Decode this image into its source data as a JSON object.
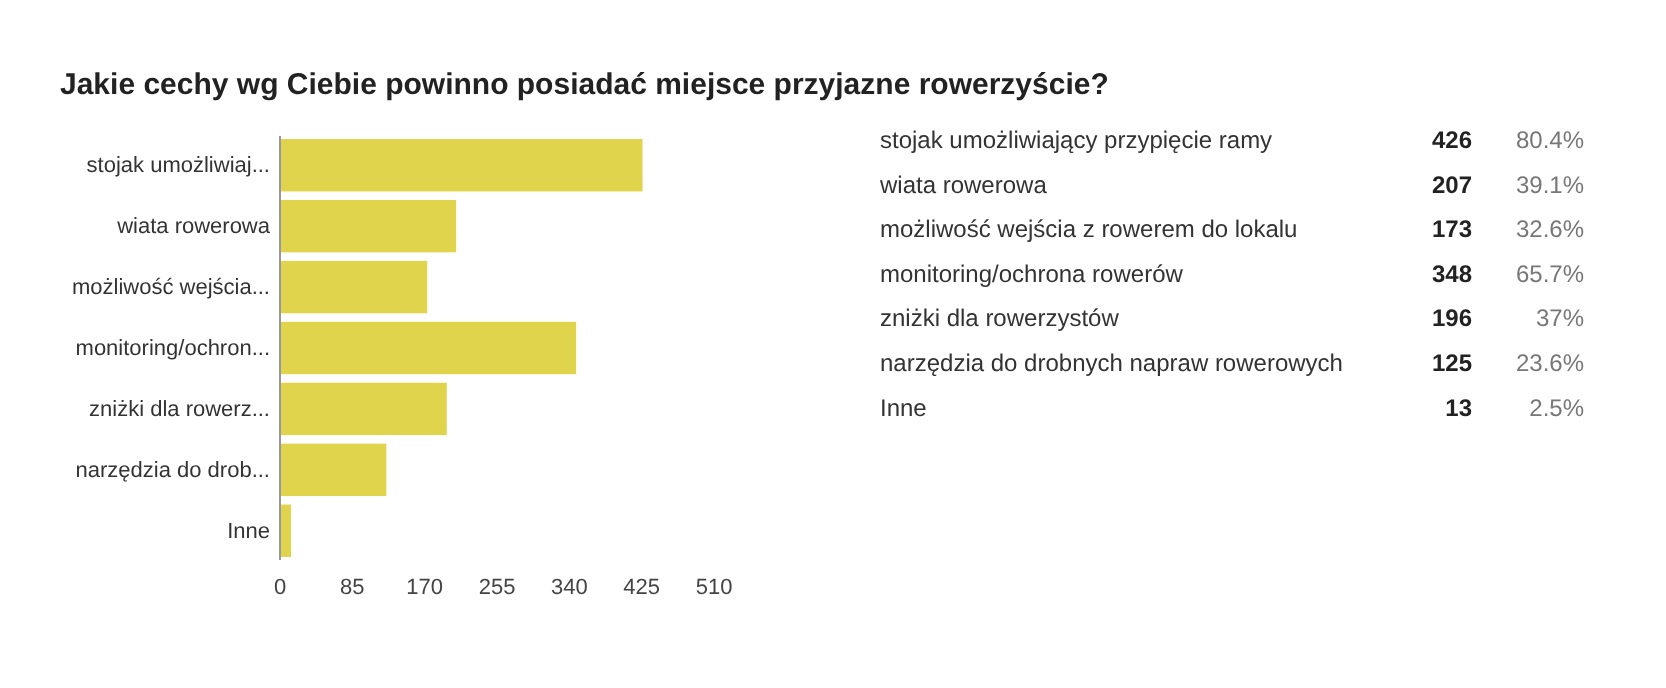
{
  "chart_data": [
    {
      "type": "bar",
      "orientation": "horizontal",
      "title": "Jakie cechy wg Ciebie powinno posiadać miejsce przyjazne rowerzyście?",
      "categories": [
        "stojak umożliwiaj...",
        "wiata rowerowa",
        "możliwość wejścia...",
        "monitoring/ochron...",
        "zniżki dla rowerz...",
        "narzędzia do drob...",
        "Inne"
      ],
      "values": [
        426,
        207,
        173,
        348,
        196,
        125,
        13
      ],
      "color": "#e0d44c",
      "xlim": [
        0,
        510
      ],
      "xticks": [
        0,
        85,
        170,
        255,
        340,
        425,
        510
      ],
      "grid": false
    },
    {
      "type": "other",
      "categories": [
        "stojak umożliwiający przypięcie ramy",
        "wiata rowerowa",
        "możliwość wejścia z rowerem do lokalu",
        "monitoring/ochrona rowerów",
        "zniżki dla rowerzystów",
        "narzędzia do drobnych napraw rowerowych",
        "Inne"
      ],
      "series": [
        {
          "values": [
            426,
            207,
            173,
            348,
            196,
            125,
            13
          ]
        },
        {
          "values": [
            80.4,
            39.1,
            32.6,
            65.7,
            37,
            23.6,
            2.5
          ],
          "value_labels": [
            "80.4%",
            "39.1%",
            "32.6%",
            "65.7%",
            "37%",
            "23.6%",
            "2.5%"
          ]
        }
      ],
      "data_labels": true
    }
  ]
}
